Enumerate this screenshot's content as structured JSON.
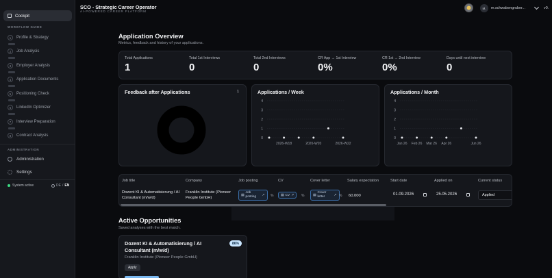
{
  "sidebar": {
    "cockpit": "Cockpit",
    "workflow_label": "WORKFLOW GUIDE",
    "steps": [
      {
        "num": "1",
        "label": "Profile & Strategy"
      },
      {
        "num": "2",
        "label": "Job Analysis"
      },
      {
        "num": "3",
        "label": "Employer Analysis"
      },
      {
        "num": "4",
        "label": "Application Documents"
      },
      {
        "num": "5",
        "label": "Positioning Check"
      },
      {
        "num": "6",
        "label": "LinkedIn Optimizer"
      },
      {
        "num": "7",
        "label": "Interview Preparation"
      },
      {
        "num": "8",
        "label": "Contract Analysis"
      }
    ],
    "admin_label": "ADMINISTRATION",
    "administration": "Administration",
    "settings": "Settings",
    "status": "System active",
    "lang_de": "DE",
    "lang_sep": "/",
    "lang_en": "EN"
  },
  "header": {
    "title": "SCO - Strategic Career Operator",
    "subtitle": "AI-POWERED CAREER PLATFORM",
    "user_initials": "M.",
    "user_name": "m.schwabengruber...",
    "version": "v0."
  },
  "overview": {
    "title": "Application Overview",
    "subtitle": "Metrics, feedback and history of your applications.",
    "stats": [
      {
        "label": "Total Applications",
        "value": "1"
      },
      {
        "label": "Total 1st Interviews",
        "value": "0"
      },
      {
        "label": "Total 2nd Interviews",
        "value": "0"
      },
      {
        "label": "CR App → 1st Interview",
        "value": "0%"
      },
      {
        "label": "CR 1st → 2nd Interview",
        "value": "0%"
      },
      {
        "label": "Days until next interview",
        "value": "0"
      }
    ]
  },
  "feedback": {
    "title": "Feedback after Applications",
    "count": "1"
  },
  "weekly": {
    "title": "Applications / Week"
  },
  "monthly": {
    "title": "Applications / Month"
  },
  "chart_data": [
    {
      "type": "pie",
      "title": "Feedback after Applications",
      "values": [
        1
      ]
    },
    {
      "type": "scatter",
      "title": "Applications / Week",
      "categories": [
        "",
        "2026-W18",
        "",
        "2026-W20",
        "",
        "2026-W22"
      ],
      "values": [
        0,
        0,
        0,
        0,
        1,
        0
      ],
      "yticks": [
        "0",
        "1",
        "2",
        "3",
        "4"
      ],
      "ylim": [
        0,
        4
      ]
    },
    {
      "type": "scatter",
      "title": "Applications / Month",
      "categories": [
        "Jan 26",
        "Feb 26",
        "Mar 26",
        "Apr 26",
        "",
        "Jun 26"
      ],
      "values": [
        0,
        0,
        0,
        0,
        1,
        0
      ],
      "yticks": [
        "0",
        "1",
        "2",
        "3",
        "4"
      ],
      "ylim": [
        0,
        4
      ]
    }
  ],
  "table": {
    "headers": [
      "Job title",
      "Company",
      "Job posting",
      "CV",
      "Cover letter",
      "Salary expectation",
      "Start date",
      "Applied on",
      "Current status"
    ],
    "row": {
      "job_title": "Dozent KI & Automatisierung / AI Consultant (m/w/d)",
      "company": "Franklin Institute (Pioneer People GmbH)",
      "job_posting": "Job posting",
      "cv": "CV",
      "cover_letter": "Cover letter",
      "pct": "%",
      "salary": "60.000",
      "start_date": "01.09.2026",
      "applied_on": "25.05.2026",
      "status": "Applied"
    }
  },
  "active": {
    "title": "Active Opportunities",
    "subtitle": "Saved analyses with the best match.",
    "card": {
      "title": "Dozent KI & Automatisierung / AI Consultant (m/w/d)",
      "company": "Franklin Institute (Pioneer People GmbH)",
      "badge": "86%",
      "action": "Apply"
    }
  }
}
